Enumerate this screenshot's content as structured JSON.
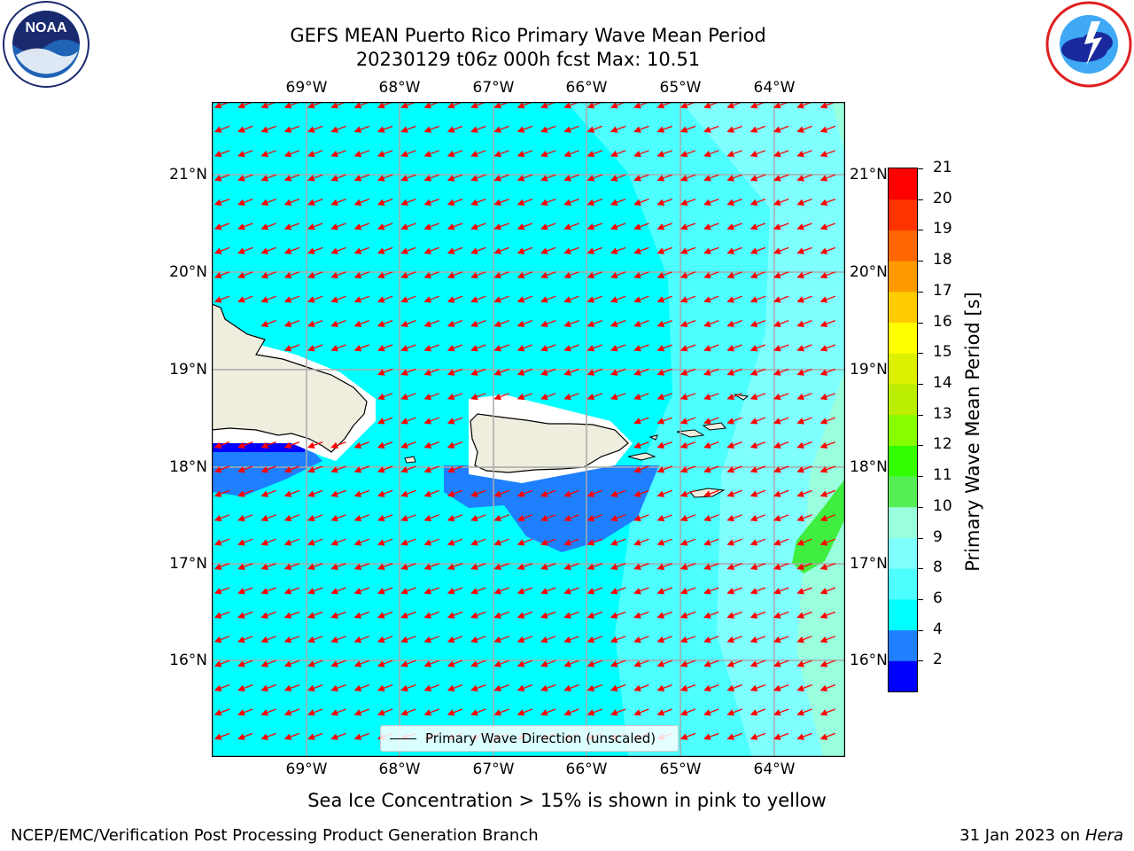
{
  "header": {
    "title_line1": "GEFS MEAN Puerto Rico Primary Wave Mean Period",
    "title_line2": "20230129 t06z 000h fcst   Max: 10.51"
  },
  "logos": {
    "left": {
      "text": "NOAA",
      "ring_text": "NATIONAL OCEANIC AND ATMOSPHERIC ADMINISTRATION · U.S. DEPARTMENT OF COMMERCE"
    },
    "right": {
      "ring_text": "NATIONAL WEATHER SERVICE"
    }
  },
  "map": {
    "lon_ticks": [
      "69°W",
      "68°W",
      "67°W",
      "66°W",
      "65°W",
      "64°W"
    ],
    "lat_ticks": [
      "21°N",
      "20°N",
      "19°N",
      "18°N",
      "17°N",
      "16°N"
    ],
    "legend_label": "Primary Wave Direction (unscaled)",
    "arrow_color": "#ff0000",
    "land_color": "#efedde",
    "ocean_base_color": "#00ffff"
  },
  "colorbar": {
    "label": "Primary Wave Mean Period [s]",
    "ticks": [
      "21",
      "20",
      "19",
      "18",
      "17",
      "16",
      "15",
      "14",
      "13",
      "12",
      "11",
      "10",
      "9",
      "8",
      "6",
      "4",
      "2"
    ],
    "colors": [
      "#0000ff",
      "#1e7fff",
      "#00ffff",
      "#4dffff",
      "#80ffff",
      "#99ffdd",
      "#55ee55",
      "#33ff00",
      "#88ff00",
      "#bbee00",
      "#ddf000",
      "#ffff00",
      "#ffcc00",
      "#ff9900",
      "#ff6600",
      "#ff3300",
      "#ff0000"
    ]
  },
  "caption": "Sea Ice Concentration > 15% is shown in pink to yellow",
  "footer": {
    "left": "NCEP/EMC/Verification Post Processing Product Generation Branch",
    "right_prefix": "31 Jan 2023 on ",
    "right_machine": "Hera"
  }
}
